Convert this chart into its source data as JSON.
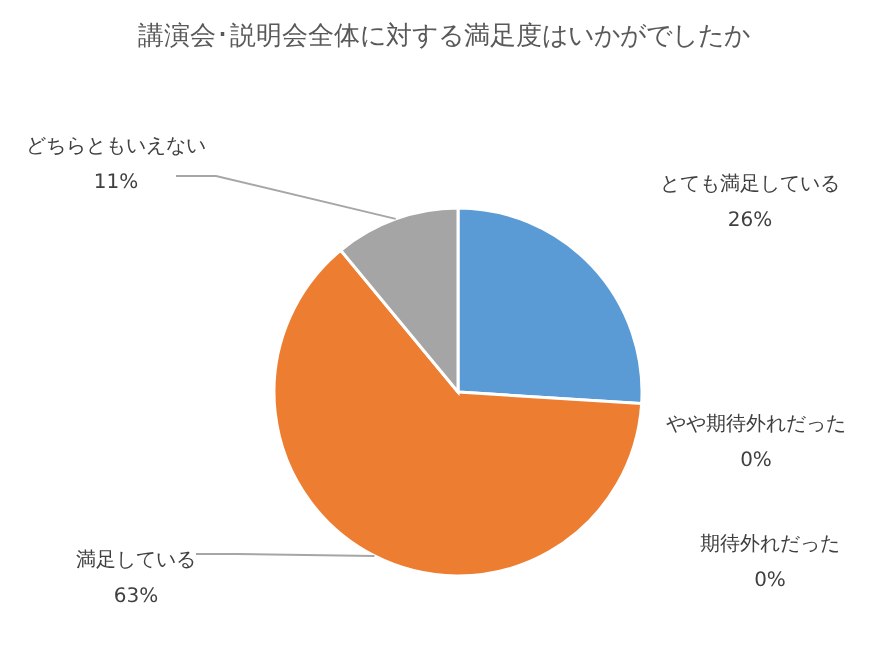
{
  "chart_data": {
    "type": "pie",
    "title": "講演会･説明会全体に対する満足度はいかがでしたか",
    "categories": [
      "とても満足している",
      "やや期待外れだった",
      "期待外れだった",
      "満足している",
      "どちらともいえない"
    ],
    "values": [
      26,
      0,
      0,
      63,
      11
    ],
    "value_labels": [
      "26%",
      "0%",
      "0%",
      "63%",
      "11%"
    ],
    "colors": [
      "#5b9bd5",
      "#ffc000",
      "#4472c4",
      "#ed7d31",
      "#a5a5a5"
    ],
    "legend": false
  }
}
